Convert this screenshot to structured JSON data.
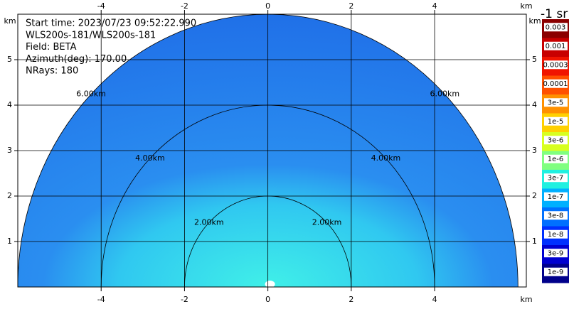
{
  "chart_data": {
    "type": "rhi",
    "info": [
      "Start time: 2023/07/23 09:52:22.990",
      "WLS200s-181/WLS200s-181",
      "Field: BETA",
      "Azimuth(deg): 170.00",
      "NRays: 180"
    ],
    "x_unit": "km",
    "y_unit": "km",
    "xlim": [
      -6,
      6.2
    ],
    "ylim": [
      0,
      6
    ],
    "xticks": [
      -4,
      -2,
      0,
      2,
      4
    ],
    "yticks": [
      1,
      2,
      3,
      4,
      5
    ],
    "grid": true,
    "range_rings": [
      {
        "value": 2,
        "label": "2.00km"
      },
      {
        "value": 4,
        "label": "4.00km"
      },
      {
        "value": 6,
        "label": "6.00km"
      }
    ],
    "colorbar": {
      "title": "-1 sr",
      "labels": [
        "0.003",
        "0.001",
        "0.0003",
        "0.0001",
        "3e-5",
        "1e-5",
        "3e-6",
        "1e-6",
        "3e-7",
        "1e-7",
        "3e-8",
        "1e-8",
        "3e-9",
        "1e-9"
      ],
      "colors": [
        "#8b0000",
        "#c80000",
        "#f01400",
        "#ff5000",
        "#ff9000",
        "#ffd000",
        "#d8ff20",
        "#80ff80",
        "#20f0e0",
        "#00b0ff",
        "#0070ff",
        "#0030ff",
        "#0000d0",
        "#00008b"
      ]
    }
  }
}
